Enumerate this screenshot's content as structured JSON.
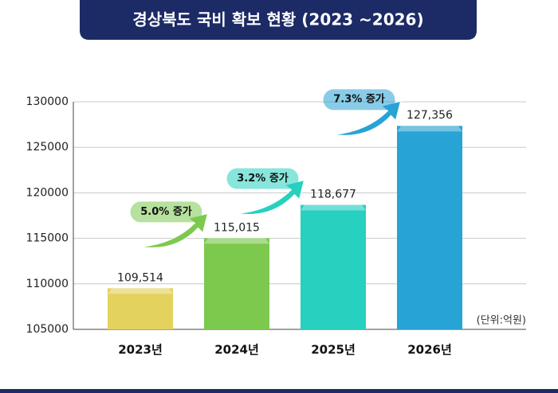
{
  "chart_data": {
    "type": "bar",
    "title": "경상북도 국비 확보 현황 (2023 ~2026)",
    "categories": [
      "2023년",
      "2024년",
      "2025년",
      "2026년"
    ],
    "values": [
      109514,
      115015,
      118677,
      127356
    ],
    "value_labels": [
      "109,514",
      "115,015",
      "118,677",
      "127,356"
    ],
    "colors": [
      "#e3d25e",
      "#7cc94e",
      "#27d0bf",
      "#28a3d5"
    ],
    "ylim": [
      105000,
      130000
    ],
    "yticks": [
      105000,
      110000,
      115000,
      120000,
      125000,
      130000
    ],
    "grid": true,
    "annotations": [
      "5.0% 증가",
      "3.2% 증가",
      "7.3% 증가"
    ],
    "unit": "(단위:억원)"
  }
}
